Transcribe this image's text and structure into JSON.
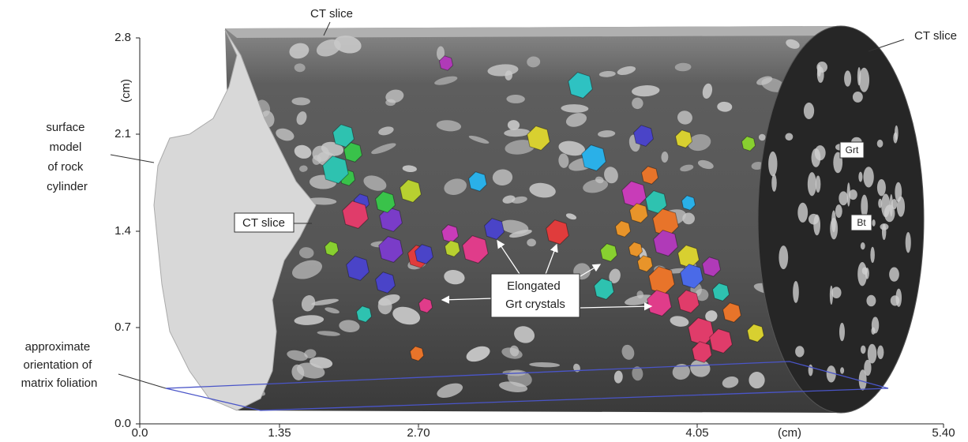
{
  "axes": {
    "y_label": "(cm)",
    "y_ticks": [
      "0.0",
      "0.7",
      "1.4",
      "2.1",
      "2.8"
    ],
    "x_label": "(cm)",
    "x_ticks": [
      "0.0",
      "1.35",
      "2.70",
      "4.05",
      "5.40"
    ]
  },
  "labels": {
    "ct_slice_top": "CT slice",
    "ct_slice_right": "CT slice",
    "ct_slice_left": "CT slice",
    "surface_model": [
      "surface",
      "model",
      "of rock",
      "cylinder"
    ],
    "foliation": [
      "approximate",
      "orientation of",
      "matrix foliation"
    ],
    "elongated": [
      "Elongated",
      "Grt crystals"
    ],
    "grt": "Grt",
    "bt": "Bt"
  }
}
